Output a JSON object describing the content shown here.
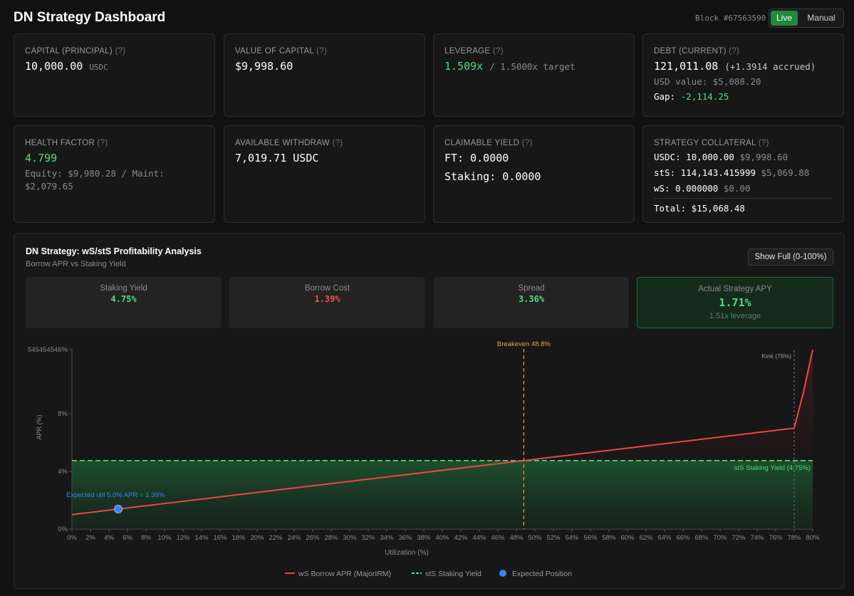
{
  "header": {
    "title": "DN Strategy Dashboard",
    "block": "Block #67563590",
    "mode_live": "Live",
    "mode_manual": "Manual"
  },
  "cards": {
    "capital": {
      "label": "CAPITAL (PRINCIPAL)",
      "help": "(?)",
      "value": "10,000.00",
      "unit": "USDC"
    },
    "value_of_capital": {
      "label": "VALUE OF CAPITAL",
      "help": "(?)",
      "value": "$9,998.60"
    },
    "leverage": {
      "label": "LEVERAGE",
      "help": "(?)",
      "value": "1.509x",
      "target": "/ 1.5000x target"
    },
    "debt": {
      "label": "DEBT (CURRENT)",
      "help": "(?)",
      "value": "121,011.08",
      "accrued": "(+1.3914 accrued)",
      "usd_value": "USD value: $5,088.20",
      "gap_label": "Gap:",
      "gap_value": "-2,114.25"
    },
    "health": {
      "label": "HEALTH FACTOR",
      "help": "(?)",
      "value": "4.799",
      "detail": "Equity: $9,980.28 / Maint: $2,079.65"
    },
    "withdraw": {
      "label": "AVAILABLE WITHDRAW",
      "help": "(?)",
      "value": "7,019.71 USDC"
    },
    "yield": {
      "label": "CLAIMABLE YIELD",
      "help": "(?)",
      "ft": "FT: 0.0000",
      "staking": "Staking: 0.0000"
    },
    "collateral": {
      "label": "STRATEGY COLLATERAL",
      "help": "(?)",
      "usdc_label": "USDC:",
      "usdc_amount": "10,000.00",
      "usdc_usd": "$9,998.60",
      "sts_label": "stS:",
      "sts_amount": "114,143.415999",
      "sts_usd": "$5,069.88",
      "ws_label": "wS:",
      "ws_amount": "0.000000",
      "ws_usd": "$0.00",
      "total_label": "Total:",
      "total_value": "$15,068.48"
    }
  },
  "analysis": {
    "title": "DN Strategy: wS/stS Profitability Analysis",
    "subtitle": "Borrow APR vs Staking Yield",
    "show_full": "Show Full (0-100%)",
    "stats": {
      "staking_label": "Staking Yield",
      "staking_value": "4.75%",
      "borrow_label": "Borrow Cost",
      "borrow_value": "1.39%",
      "spread_label": "Spread",
      "spread_value": "3.36%",
      "actual_label": "Actual Strategy APY",
      "actual_value": "1.71%",
      "actual_note": "1.51x leverage"
    }
  },
  "colors": {
    "green": "#4ade80",
    "red": "#ef4444",
    "orange": "#f59e42",
    "blue": "#3b82f6"
  },
  "chart_data": {
    "type": "line",
    "xlabel": "Utilization (%)",
    "ylabel": "APR (%)",
    "xlim": [
      0,
      80
    ],
    "x_ticks": [
      "0%",
      "2%",
      "4%",
      "6%",
      "8%",
      "10%",
      "12%",
      "14%",
      "16%",
      "18%",
      "20%",
      "22%",
      "24%",
      "26%",
      "28%",
      "30%",
      "32%",
      "34%",
      "36%",
      "38%",
      "40%",
      "42%",
      "44%",
      "46%",
      "48%",
      "50%",
      "52%",
      "54%",
      "56%",
      "58%",
      "60%",
      "62%",
      "64%",
      "66%",
      "68%",
      "70%",
      "72%",
      "74%",
      "76%",
      "78%",
      "80%"
    ],
    "y_ticks": [
      "0%",
      "4%",
      "8%",
      "545454546%"
    ],
    "series": [
      {
        "name": "wS Borrow APR (MajorIRM)",
        "x": [
          0,
          5,
          48.8,
          78,
          79,
          80
        ],
        "y": [
          1.0,
          1.39,
          4.75,
          7.0,
          9.5,
          12.5
        ]
      },
      {
        "name": "stS Staking Yield",
        "x": [
          0,
          80
        ],
        "y": [
          4.75,
          4.75
        ]
      }
    ],
    "expected_point": {
      "x": 5,
      "y": 1.39,
      "label": "Expected util 5.0% APR = 1.39%"
    },
    "breakeven": {
      "x": 48.8,
      "label": "Breakeven 48.8%"
    },
    "kink": {
      "x": 78,
      "label": "Kink (78%)"
    },
    "staking_line_label": "stS Staking Yield (4.75%)",
    "legend": [
      "wS Borrow APR (MajorIRM)",
      "stS Staking Yield",
      "Expected Position"
    ]
  }
}
